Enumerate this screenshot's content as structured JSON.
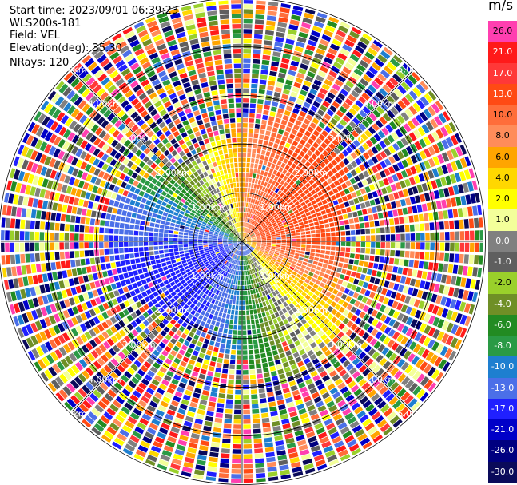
{
  "info": {
    "start_time": "Start time: 2023/09/01 06:39:23",
    "site": "WLS200s-181",
    "field": "Field: VEL",
    "elevation": "Elevation(deg): 35.30",
    "nrays": "NRays: 120"
  },
  "chart_data": {
    "type": "heatmap",
    "title": "",
    "projection": "polar (PPI)",
    "nrays": 120,
    "range_rings_km": [
      1.0,
      2.0,
      3.0,
      4.0,
      5.0
    ],
    "ring_label": "km",
    "spokes": 8,
    "colorbar": {
      "unit": "m/s",
      "ticks": [
        "26.0",
        "21.0",
        "17.0",
        "13.0",
        "10.0",
        "8.0",
        "6.0",
        "4.0",
        "2.0",
        "1.0",
        "0.0",
        "-1.0",
        "-2.0",
        "-4.0",
        "-6.0",
        "-8.0",
        "-10.0",
        "-13.0",
        "-17.0",
        "-21.0",
        "-26.0",
        "-30.0"
      ],
      "colors": [
        "#ff3fb0",
        "#ff1a1a",
        "#ff3838",
        "#ff4a14",
        "#ff6d3a",
        "#ff8c5a",
        "#ffa500",
        "#ffd700",
        "#ffff00",
        "#f3ff9a",
        "#808080",
        "#5f5f5f",
        "#9ad02b",
        "#6f8f26",
        "#228b22",
        "#2a9a45",
        "#1e7fd0",
        "#4b6fe8",
        "#2020ff",
        "#0000c8",
        "#000080",
        "#0a0a5a"
      ]
    },
    "velocity_field_description": "receding (orange/red) to the north and east, approaching (green/blue) to the south and west, noisy multi-color beyond ~2 km"
  }
}
